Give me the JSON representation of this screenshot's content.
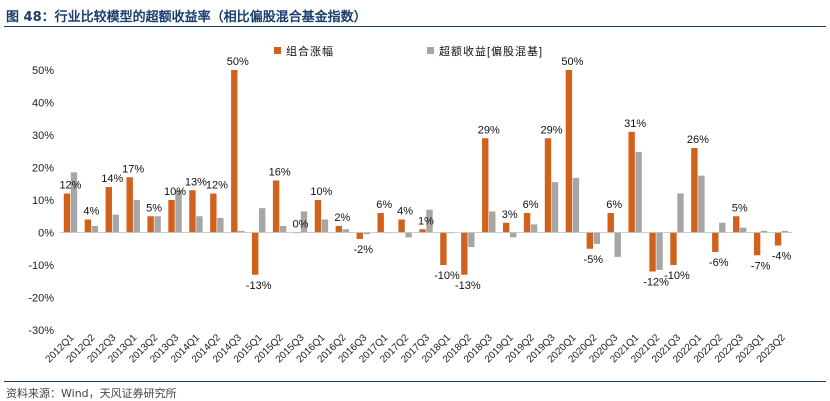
{
  "title": "图 48：行业比较模型的超额收益率（相比偏股混合基金指数）",
  "source": "资料来源：Wind，天风证券研究所",
  "colors": {
    "series1": "#d0621c",
    "series2": "#a6a6a6",
    "title": "#1a3e6e"
  },
  "chart_data": {
    "type": "bar",
    "title": "行业比较模型的超额收益率（相比偏股混合基金指数）",
    "ylim": [
      -30,
      50
    ],
    "yticks": [
      50,
      40,
      30,
      20,
      10,
      0,
      -10,
      -20,
      -30
    ],
    "ytick_labels": [
      "50%",
      "40%",
      "30%",
      "20%",
      "10%",
      "0%",
      "-10%",
      "-20%",
      "-30%"
    ],
    "categories": [
      "2012Q1",
      "2012Q2",
      "2012Q3",
      "2013Q1",
      "2013Q2",
      "2013Q3",
      "2014Q1",
      "2014Q2",
      "2014Q3",
      "2015Q1",
      "2015Q2",
      "2015Q3",
      "2016Q1",
      "2016Q2",
      "2016Q3",
      "2017Q1",
      "2017Q2",
      "2017Q3",
      "2018Q1",
      "2018Q2",
      "2018Q3",
      "2019Q1",
      "2019Q2",
      "2019Q3",
      "2020Q1",
      "2020Q2",
      "2020Q3",
      "2021Q1",
      "2021Q2",
      "2021Q3",
      "2022Q1",
      "2022Q2",
      "2022Q3",
      "2023Q1",
      "2023Q2"
    ],
    "series": [
      {
        "name": "组合涨幅",
        "values": [
          12,
          4,
          14,
          17,
          5,
          10,
          13,
          12,
          50,
          -13,
          16,
          0,
          10,
          2,
          -2,
          6,
          4,
          1,
          -10,
          -13,
          29,
          3,
          6,
          29,
          50,
          -5,
          6,
          31,
          -12,
          -10,
          26,
          -6,
          5,
          -7,
          -4
        ]
      },
      {
        "name": "超额收益[偏股混基]",
        "values": [
          18.5,
          2,
          5.5,
          10,
          5,
          13,
          5,
          4.5,
          0.5,
          7.5,
          2,
          6.5,
          4,
          1,
          -0.5,
          0,
          -1.5,
          7,
          0,
          -4.5,
          6.5,
          -1.5,
          2.5,
          15.5,
          16.8,
          -3.5,
          -7.5,
          24.8,
          -11.5,
          12,
          17.5,
          3,
          1.5,
          0.5,
          0.5
        ]
      }
    ],
    "data_labels": [
      "12%",
      "4%",
      "14%",
      "17%",
      "5%",
      "10%",
      "13%",
      "12%",
      "50%",
      "-13%",
      "16%",
      "0%",
      "10%",
      "2%",
      "-2%",
      "6%",
      "4%",
      "1%",
      "-10%",
      "-13%",
      "29%",
      "3%",
      "6%",
      "29%",
      "50%",
      "-5%",
      "6%",
      "31%",
      "-12%",
      "-10%",
      "26%",
      "-6%",
      "5%",
      "-7%",
      "-4%"
    ],
    "legend": {
      "position": "top",
      "entries": [
        "组合涨幅",
        "超额收益[偏股混基]"
      ]
    },
    "grid": false
  }
}
